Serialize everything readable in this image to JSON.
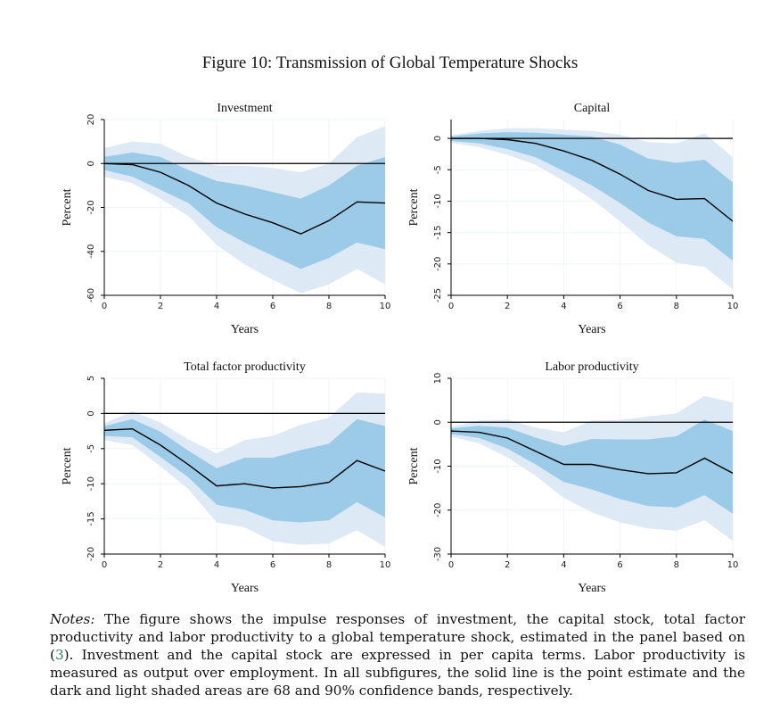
{
  "figure": {
    "title": "Figure 10: Transmission of Global Temperature Shocks",
    "notes": {
      "lead": "Notes:",
      "before_ref": " The figure shows the impulse responses of investment, the capital stock, total factor productivity and labor productivity to a global temperature shock, estimated in the panel based on (",
      "ref": "3",
      "after_ref": "). Investment and the capital stock are expressed in per capita terms. Labor productivity is measured as output over employment. In all subfigures, the solid line is the point estimate and the dark and light shaded areas are 68 and 90% confidence bands, respectively."
    },
    "colors": {
      "line": "#000000",
      "band68": "#9ccbe8",
      "band90": "#ddeaf6",
      "zero": "#000000",
      "grid": "#eef4f9"
    }
  },
  "chart_data": [
    {
      "type": "line",
      "title": "Investment",
      "xlabel": "Years",
      "ylabel": "Percent",
      "x": [
        0,
        1,
        2,
        3,
        4,
        5,
        6,
        7,
        8,
        9,
        10
      ],
      "xticks": [
        0,
        2,
        4,
        6,
        8,
        10
      ],
      "yticks": [
        -60,
        -40,
        -20,
        0,
        20
      ],
      "xlim": [
        0,
        10
      ],
      "ylim": [
        -60,
        20
      ],
      "series": [
        {
          "name": "point estimate",
          "values": [
            0,
            -0.5,
            -4,
            -10,
            -18,
            -23,
            -27,
            -32,
            -26,
            -17.5,
            -18
          ]
        },
        {
          "name": "68% lower",
          "values": [
            -3,
            -6,
            -12,
            -18,
            -29,
            -36,
            -42,
            -48,
            -43,
            -36,
            -39
          ]
        },
        {
          "name": "68% upper",
          "values": [
            3,
            5,
            3,
            -3,
            -8,
            -10,
            -13,
            -16,
            -10,
            -1,
            3
          ]
        },
        {
          "name": "90% lower",
          "values": [
            -6,
            -9,
            -16,
            -24,
            -37,
            -46,
            -53,
            -59,
            -55,
            -48,
            -55
          ]
        },
        {
          "name": "90% upper",
          "values": [
            7,
            10,
            9,
            3,
            -1,
            -1,
            -2,
            -4,
            0,
            12,
            17
          ]
        }
      ]
    },
    {
      "type": "line",
      "title": "Capital",
      "xlabel": "Years",
      "ylabel": "Percent",
      "x": [
        0,
        1,
        2,
        3,
        4,
        5,
        6,
        7,
        8,
        9,
        10
      ],
      "xticks": [
        0,
        2,
        4,
        6,
        8,
        10
      ],
      "yticks": [
        -25,
        -20,
        -15,
        -10,
        -5,
        0
      ],
      "xlim": [
        0,
        10
      ],
      "ylim": [
        -25,
        3
      ],
      "series": [
        {
          "name": "point estimate",
          "values": [
            0,
            0,
            -0.2,
            -0.8,
            -2,
            -3.5,
            -5.7,
            -8.3,
            -9.7,
            -9.6,
            -13.2
          ]
        },
        {
          "name": "68% lower",
          "values": [
            -0.4,
            -0.8,
            -1.7,
            -3,
            -5.2,
            -7.5,
            -10.3,
            -13.4,
            -15.6,
            -16,
            -19.5
          ]
        },
        {
          "name": "68% upper",
          "values": [
            0.3,
            0.8,
            1,
            0.9,
            0.6,
            0.3,
            -1,
            -3.2,
            -3.9,
            -3.4,
            -7
          ]
        },
        {
          "name": "90% lower",
          "values": [
            -0.7,
            -1.4,
            -2.6,
            -4.2,
            -6.8,
            -9.7,
            -13.2,
            -17,
            -19.8,
            -20.5,
            -24
          ]
        },
        {
          "name": "90% upper",
          "values": [
            0.5,
            1.2,
            1.6,
            1.6,
            1.4,
            1.2,
            0.6,
            -0.6,
            -0.8,
            0.8,
            -3
          ]
        }
      ]
    },
    {
      "type": "line",
      "title": "Total factor productivity",
      "xlabel": "Years",
      "ylabel": "Percent",
      "x": [
        0,
        1,
        2,
        3,
        4,
        5,
        6,
        7,
        8,
        9,
        10
      ],
      "xticks": [
        0,
        2,
        4,
        6,
        8,
        10
      ],
      "yticks": [
        -20,
        -15,
        -10,
        -5,
        0,
        5
      ],
      "xlim": [
        0,
        10
      ],
      "ylim": [
        -20,
        5
      ],
      "series": [
        {
          "name": "point estimate",
          "values": [
            -2.4,
            -2.2,
            -4.5,
            -7.3,
            -10.3,
            -10,
            -10.6,
            -10.4,
            -9.8,
            -6.7,
            -8.2
          ]
        },
        {
          "name": "68% lower",
          "values": [
            -3.2,
            -3.4,
            -6.2,
            -9.1,
            -13,
            -13.7,
            -15.2,
            -15.5,
            -15.2,
            -12.6,
            -14.8
          ]
        },
        {
          "name": "68% upper",
          "values": [
            -1.8,
            -0.8,
            -2.6,
            -5.3,
            -7.8,
            -6.3,
            -6.3,
            -5.2,
            -4.3,
            -0.8,
            -1.8
          ]
        },
        {
          "name": "90% lower",
          "values": [
            -3.8,
            -4.5,
            -7.5,
            -10.8,
            -15.5,
            -16.2,
            -18.2,
            -18.7,
            -18.5,
            -16.6,
            -19
          ]
        },
        {
          "name": "90% upper",
          "values": [
            -1.4,
            0.3,
            -1.3,
            -3.7,
            -5.7,
            -3.8,
            -3.2,
            -1.6,
            -0.6,
            3,
            2.8
          ]
        }
      ]
    },
    {
      "type": "line",
      "title": "Labor productivity",
      "xlabel": "Years",
      "ylabel": "Percent",
      "x": [
        0,
        1,
        2,
        3,
        4,
        5,
        6,
        7,
        8,
        9,
        10
      ],
      "xticks": [
        0,
        2,
        4,
        6,
        8,
        10
      ],
      "yticks": [
        -30,
        -20,
        -10,
        0,
        10
      ],
      "xlim": [
        0,
        10
      ],
      "ylim": [
        -30,
        10
      ],
      "series": [
        {
          "name": "point estimate",
          "values": [
            -2,
            -2.3,
            -3.6,
            -6.6,
            -9.6,
            -9.6,
            -10.8,
            -11.7,
            -11.5,
            -8.2,
            -11.6
          ]
        },
        {
          "name": "68% lower",
          "values": [
            -2.7,
            -3.6,
            -6,
            -9.6,
            -13.6,
            -15.3,
            -17.5,
            -19.1,
            -19.4,
            -16.6,
            -20.8
          ]
        },
        {
          "name": "68% upper",
          "values": [
            -1.4,
            -0.8,
            -1.2,
            -3.5,
            -5.4,
            -3.8,
            -3.9,
            -3.9,
            -3.2,
            0.6,
            -2
          ]
        },
        {
          "name": "90% lower",
          "values": [
            -3.3,
            -4.8,
            -8,
            -12.2,
            -17.2,
            -20.5,
            -22.8,
            -24.2,
            -24.7,
            -22.3,
            -27
          ]
        },
        {
          "name": "90% upper",
          "values": [
            -1,
            0.4,
            0.6,
            -1.2,
            -2.3,
            0.4,
            0.5,
            1.3,
            2,
            6,
            4.5
          ]
        }
      ]
    }
  ]
}
